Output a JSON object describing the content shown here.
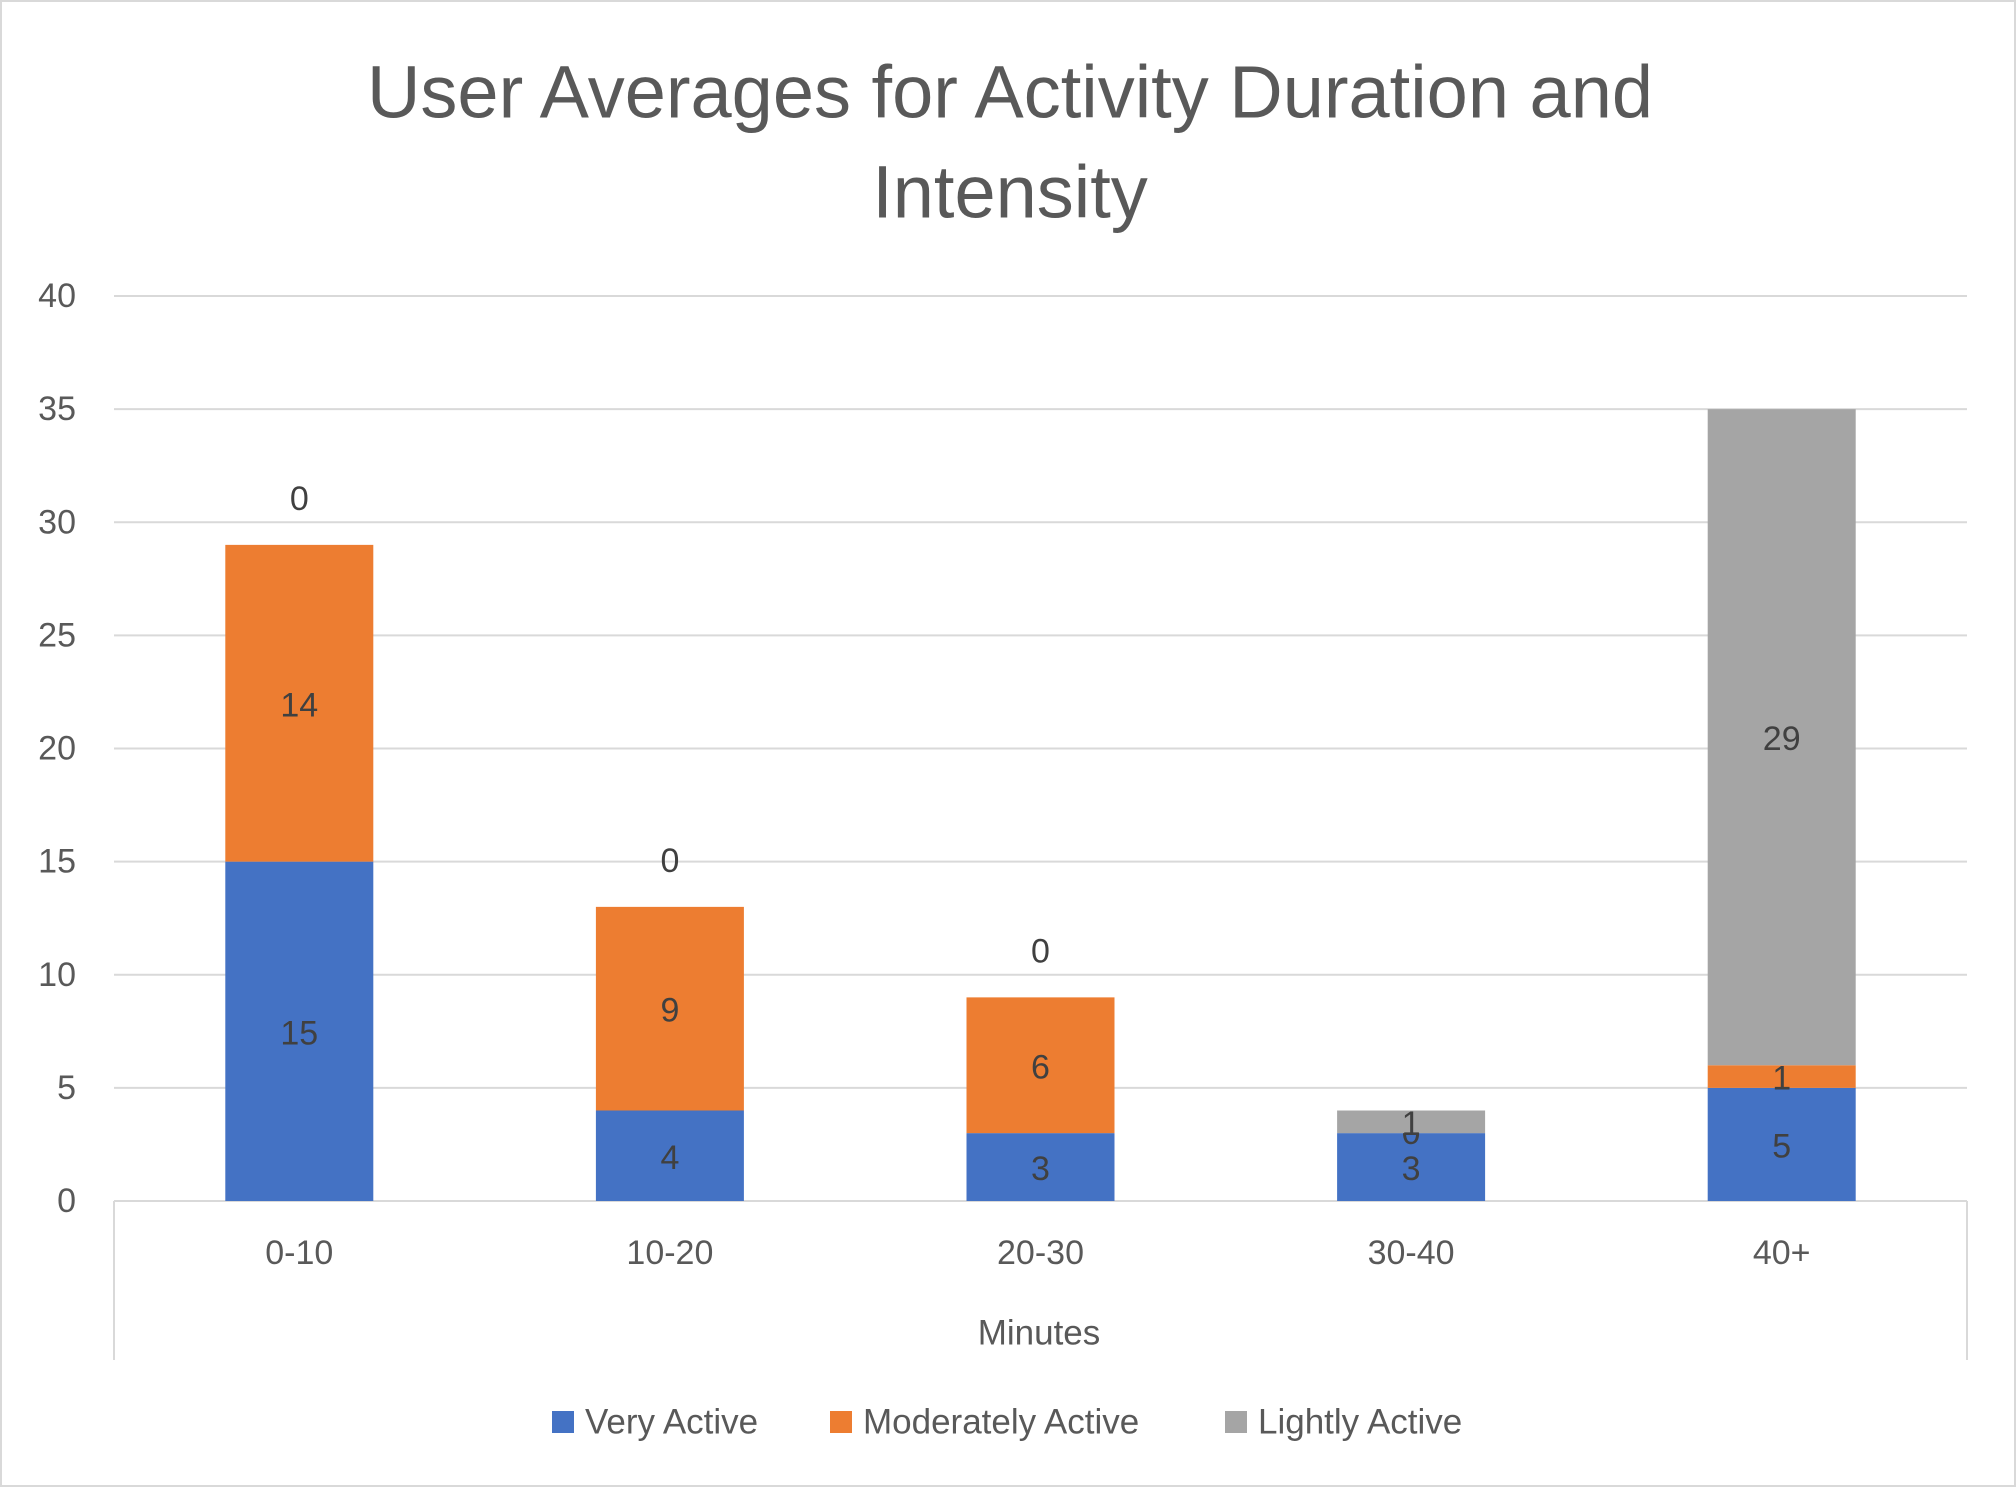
{
  "chart_data": {
    "type": "bar",
    "stacked": true,
    "title": "User Averages for Activity Duration and Intensity",
    "title_lines": [
      "User Averages for Activity Duration and",
      "Intensity"
    ],
    "xlabel": "Minutes",
    "ylabel": "",
    "categories": [
      "0-10",
      "10-20",
      "20-30",
      "30-40",
      "40+"
    ],
    "series": [
      {
        "name": "Very Active",
        "color": "#4472c4",
        "values": [
          15,
          4,
          3,
          3,
          5
        ]
      },
      {
        "name": "Moderately Active",
        "color": "#ed7d31",
        "values": [
          14,
          9,
          6,
          0,
          1
        ]
      },
      {
        "name": "Lightly Active",
        "color": "#a5a5a5",
        "values": [
          0,
          0,
          0,
          1,
          29
        ]
      }
    ],
    "ylim": [
      0,
      40
    ],
    "yticks": [
      0,
      5,
      10,
      15,
      20,
      25,
      30,
      35,
      40
    ],
    "grid": true,
    "legend_position": "bottom",
    "colors": {
      "text": "#595959",
      "label": "#404040",
      "grid": "#d9d9d9"
    }
  }
}
